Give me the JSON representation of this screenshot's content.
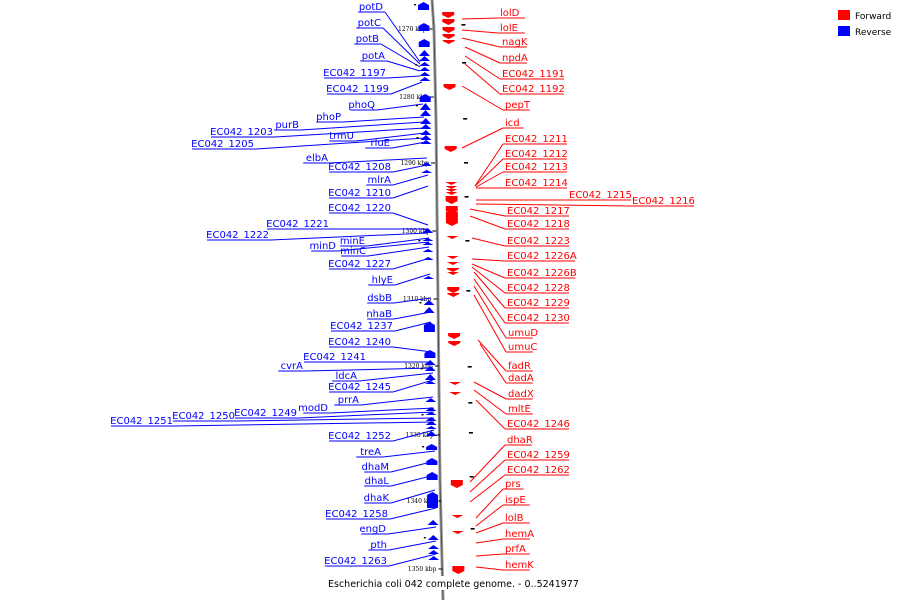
{
  "caption": "Escherichia coli 042 complete genome. - 0..5241977",
  "legend": [
    {
      "label": "Forward",
      "color": "#ff0000"
    },
    {
      "label": "Reverse",
      "color": "#0000ff"
    }
  ],
  "colors": {
    "forward": "#ff0000",
    "reverse": "#0000ff",
    "backbone": "#888888"
  },
  "ticks": [
    "1270 kbp",
    "1280 kbp",
    "1290 kbp",
    "1300 kbp",
    "1310 kbp",
    "1320 kbp",
    "1330 kbp",
    "1340 kbp",
    "1350 kbp"
  ],
  "reverse_genes": [
    "potD",
    "potC",
    "potB",
    "potA",
    "EC042_1197",
    "EC042_1199",
    "phoQ",
    "phoP",
    "purB",
    "EC042_1203",
    "trmU",
    "EC042_1205",
    "rluE",
    "elbA",
    "EC042_1208",
    "mlrA",
    "EC042_1210",
    "EC042_1220",
    "EC042_1221",
    "EC042_1222",
    "minE",
    "minD",
    "minC",
    "EC042_1227",
    "hlyE",
    "dsbB",
    "nhaB",
    "EC042_1237",
    "EC042_1240",
    "EC042_1241",
    "cvrA",
    "ldcA",
    "EC042_1245",
    "prrA",
    "modD",
    "EC042_1249",
    "EC042_1250",
    "EC042_1251",
    "EC042_1252",
    "treA",
    "dhaM",
    "dhaL",
    "dhaK",
    "EC042_1258",
    "engD",
    "pth",
    "EC042_1263"
  ],
  "forward_genes": [
    "lolD",
    "lolE",
    "nagK",
    "npdA",
    "EC042_1191",
    "EC042_1192",
    "pepT",
    "icd",
    "EC042_1211",
    "EC042_1212",
    "EC042_1213",
    "EC042_1214",
    "EC042_1215",
    "EC042_1216",
    "EC042_1217",
    "EC042_1218",
    "EC042_1223",
    "EC042_1226A",
    "EC042_1226B",
    "EC042_1228",
    "EC042_1229",
    "EC042_1230",
    "umuD",
    "umuC",
    "fadR",
    "dadA",
    "dadX",
    "mltE",
    "EC042_1246",
    "dhaR",
    "EC042_1259",
    "EC042_1262",
    "prs",
    "ispE",
    "lolB",
    "hemA",
    "prfA",
    "hemK"
  ]
}
